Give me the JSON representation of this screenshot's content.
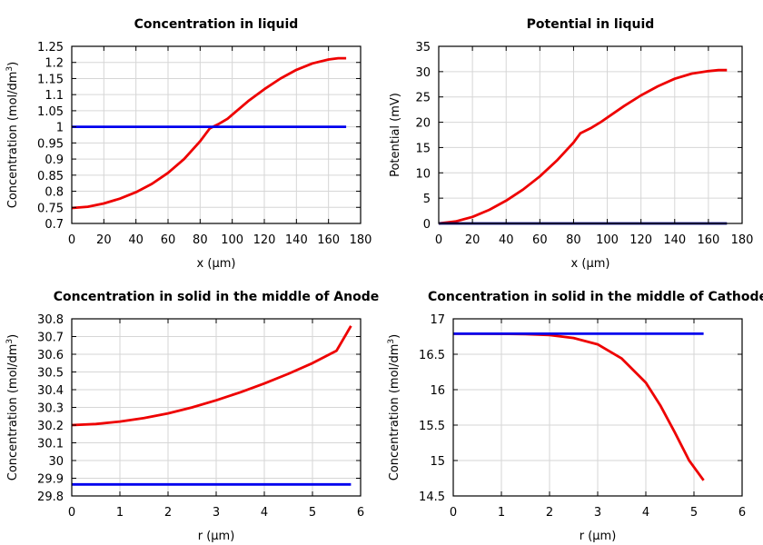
{
  "colors": {
    "red": "#ee0000",
    "blue": "#0000ee",
    "navy": "#000080"
  },
  "chart_data": [
    {
      "type": "line",
      "title": "Concentration in liquid",
      "xlabel": "x (µm)",
      "ylabel": "Concentration (mol/dm³)",
      "xlim": [
        0,
        180
      ],
      "ylim": [
        0.7,
        1.25
      ],
      "xticks": [
        0,
        20,
        40,
        60,
        80,
        100,
        120,
        140,
        160,
        180
      ],
      "yticks": [
        0.7,
        0.75,
        0.8,
        0.85,
        0.9,
        0.95,
        1,
        1.05,
        1.1,
        1.15,
        1.2,
        1.25
      ],
      "ytick_labels": [
        "0.7",
        "0.75",
        "0.8",
        "0.85",
        "0.9",
        "0.95",
        "1",
        "1.05",
        "1.1",
        "1.15",
        "1.2",
        "1.25"
      ],
      "grid": true,
      "series": [
        {
          "color": "#ee0000",
          "x": [
            0,
            10,
            20,
            30,
            40,
            50,
            60,
            70,
            80,
            86,
            92,
            97,
            110,
            120,
            130,
            140,
            150,
            160,
            166,
            171
          ],
          "y": [
            0.748,
            0.752,
            0.762,
            0.777,
            0.797,
            0.823,
            0.857,
            0.9,
            0.955,
            0.995,
            1.01,
            1.025,
            1.08,
            1.117,
            1.15,
            1.177,
            1.197,
            1.209,
            1.213,
            1.213
          ]
        },
        {
          "color": "#0000ee",
          "x": [
            0,
            171
          ],
          "y": [
            1.0,
            1.0
          ]
        }
      ]
    },
    {
      "type": "line",
      "title": "Potential in liquid",
      "xlabel": "x (µm)",
      "ylabel": "Potential (mV)",
      "xlim": [
        0,
        180
      ],
      "ylim": [
        0,
        35
      ],
      "xticks": [
        0,
        20,
        40,
        60,
        80,
        100,
        120,
        140,
        160,
        180
      ],
      "yticks": [
        0,
        5,
        10,
        15,
        20,
        25,
        30,
        35
      ],
      "ytick_labels": [
        "0",
        "5",
        "10",
        "15",
        "20",
        "25",
        "30",
        "35"
      ],
      "grid": true,
      "series": [
        {
          "color": "#ee0000",
          "x": [
            0,
            10,
            20,
            30,
            40,
            50,
            60,
            70,
            80,
            84,
            90,
            96,
            110,
            120,
            130,
            140,
            150,
            160,
            166,
            171
          ],
          "y": [
            0,
            0.4,
            1.3,
            2.7,
            4.5,
            6.7,
            9.3,
            12.4,
            16.0,
            17.8,
            18.8,
            20.0,
            23.2,
            25.3,
            27.1,
            28.6,
            29.6,
            30.1,
            30.3,
            30.3
          ]
        },
        {
          "color": "#000080",
          "x": [
            0,
            171
          ],
          "y": [
            0,
            0
          ]
        }
      ]
    },
    {
      "type": "line",
      "title": "Concentration in solid in the middle of Anode",
      "xlabel": "r (µm)",
      "ylabel": "Concentration (mol/dm³)",
      "xlim": [
        0,
        6
      ],
      "ylim": [
        29.8,
        30.8
      ],
      "xticks": [
        0,
        1,
        2,
        3,
        4,
        5,
        6
      ],
      "yticks": [
        29.8,
        29.9,
        30,
        30.1,
        30.2,
        30.3,
        30.4,
        30.5,
        30.6,
        30.7,
        30.8
      ],
      "ytick_labels": [
        "29.8",
        "29.9",
        "30",
        "30.1",
        "30.2",
        "30.3",
        "30.4",
        "30.5",
        "30.6",
        "30.7",
        "30.8"
      ],
      "grid": true,
      "series": [
        {
          "color": "#ee0000",
          "x": [
            0,
            0.5,
            1,
            1.5,
            2,
            2.5,
            3,
            3.5,
            4,
            4.5,
            5,
            5.5,
            5.8
          ],
          "y": [
            30.2,
            30.206,
            30.22,
            30.24,
            30.266,
            30.3,
            30.34,
            30.385,
            30.435,
            30.49,
            30.55,
            30.62,
            30.76
          ]
        },
        {
          "color": "#0000ee",
          "x": [
            0,
            5.8
          ],
          "y": [
            29.865,
            29.865
          ]
        }
      ]
    },
    {
      "type": "line",
      "title": "Concentration in solid in the middle of Cathode",
      "xlabel": "r (µm)",
      "ylabel": "Concentration (mol/dm³)",
      "xlim": [
        0,
        6
      ],
      "ylim": [
        14.5,
        17
      ],
      "xticks": [
        0,
        1,
        2,
        3,
        4,
        5,
        6
      ],
      "yticks": [
        14.5,
        15,
        15.5,
        16,
        16.5,
        17
      ],
      "ytick_labels": [
        "14.5",
        "15",
        "15.5",
        "16",
        "16.5",
        "17"
      ],
      "grid": true,
      "series": [
        {
          "color": "#ee0000",
          "x": [
            0,
            0.5,
            1,
            1.5,
            2,
            2.5,
            3,
            3.5,
            4,
            4.3,
            4.6,
            4.9,
            5.2
          ],
          "y": [
            16.79,
            16.79,
            16.788,
            16.784,
            16.77,
            16.73,
            16.64,
            16.44,
            16.1,
            15.78,
            15.4,
            15.0,
            14.72
          ]
        },
        {
          "color": "#0000ee",
          "x": [
            0,
            5.2
          ],
          "y": [
            16.79,
            16.79
          ]
        }
      ]
    }
  ]
}
